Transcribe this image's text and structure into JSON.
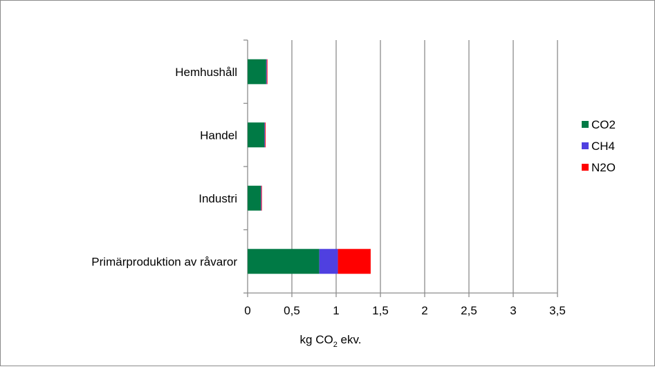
{
  "chart_data": {
    "type": "bar",
    "orientation": "horizontal",
    "stacked": true,
    "categories": [
      "Primärproduktion av råvaror",
      "Industri",
      "Handel",
      "Hemhushåll"
    ],
    "series": [
      {
        "name": "CO2",
        "color": "#007A45",
        "values": [
          0.81,
          0.15,
          0.19,
          0.21
        ]
      },
      {
        "name": "CH4",
        "color": "#4F40E0",
        "values": [
          0.21,
          0.005,
          0.007,
          0.007
        ]
      },
      {
        "name": "N2O",
        "color": "#FF0000",
        "values": [
          0.37,
          0.005,
          0.007,
          0.007
        ]
      }
    ],
    "xlim": [
      0,
      3.5
    ],
    "xticks": [
      "0",
      "0,5",
      "1",
      "1,5",
      "2",
      "2,5",
      "3",
      "3,5"
    ],
    "xlabel": {
      "main": "kg CO",
      "sub": "2",
      "suffix": " ekv."
    },
    "grid": "vertical",
    "legend_position": "right"
  }
}
